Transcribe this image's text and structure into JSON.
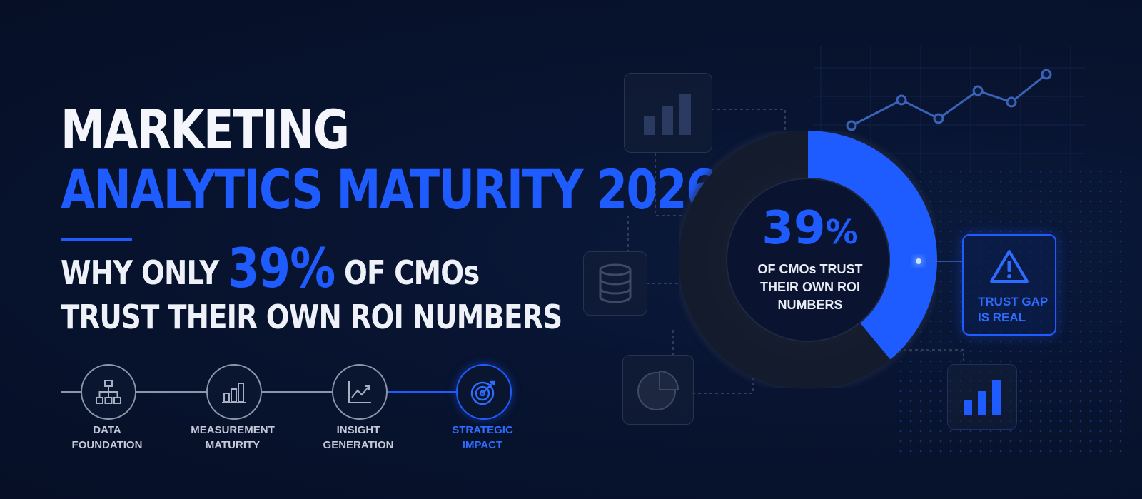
{
  "headline": {
    "line1": "MARKETING",
    "line2": "ANALYTICS MATURITY 2026:",
    "sub_prefix": "WHY ONLY",
    "sub_highlight": "39%",
    "sub_suffix": "OF CMOs",
    "sub_line2": "TRUST THEIR OWN ROI NUMBERS"
  },
  "stages": [
    {
      "line1": "DATA",
      "line2": "FOUNDATION",
      "icon": "hierarchy-icon",
      "active": false
    },
    {
      "line1": "MEASUREMENT",
      "line2": "MATURITY",
      "icon": "bar-chart-icon",
      "active": false
    },
    {
      "line1": "INSIGHT",
      "line2": "GENERATION",
      "icon": "trend-line-icon",
      "active": false
    },
    {
      "line1": "STRATEGIC",
      "line2": "IMPACT",
      "icon": "target-icon",
      "active": true
    }
  ],
  "donut": {
    "value": 39,
    "percent_number": "39",
    "percent_sign": "%",
    "caption1": "OF CMOs TRUST",
    "caption2": "THEIR OWN ROI",
    "caption3": "NUMBERS"
  },
  "callout": {
    "icon": "warning-icon",
    "line1": "TRUST GAP",
    "line2": "IS REAL"
  },
  "colors": {
    "accent": "#1f5cff",
    "background": "#081431",
    "text": "#f4f6fb"
  }
}
